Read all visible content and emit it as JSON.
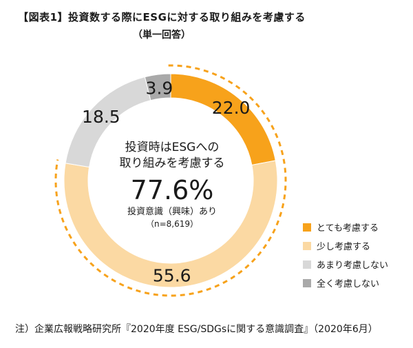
{
  "title": "【図表1】投資数する際にESGに対する取り組みを考慮する",
  "subtitle": "（単一回答）",
  "center": {
    "line1": "投資時はESGへの",
    "line2": "取り組みを考慮する",
    "big": "77.6%",
    "sub1": "投資意識（興味）あり",
    "sub2": "（n=8,619）"
  },
  "footnote": "注）企業広報戦略研究所『2020年度 ESG/SDGsに関する意識調査』（2020年6月）",
  "chart_data": {
    "type": "pie",
    "style": "donut",
    "categories": [
      "とても考慮する",
      "少し考慮する",
      "あまり考慮しない",
      "全く考慮しない"
    ],
    "values": [
      22.0,
      55.6,
      18.5,
      3.9
    ],
    "labels": [
      "22.0",
      "55.6",
      "18.5",
      "3.9"
    ],
    "colors": [
      "#f7a21b",
      "#fbd9a3",
      "#d8d8d8",
      "#a9a9a9"
    ],
    "highlight_arc_color": "#f7a21b",
    "legend_position": "right"
  }
}
